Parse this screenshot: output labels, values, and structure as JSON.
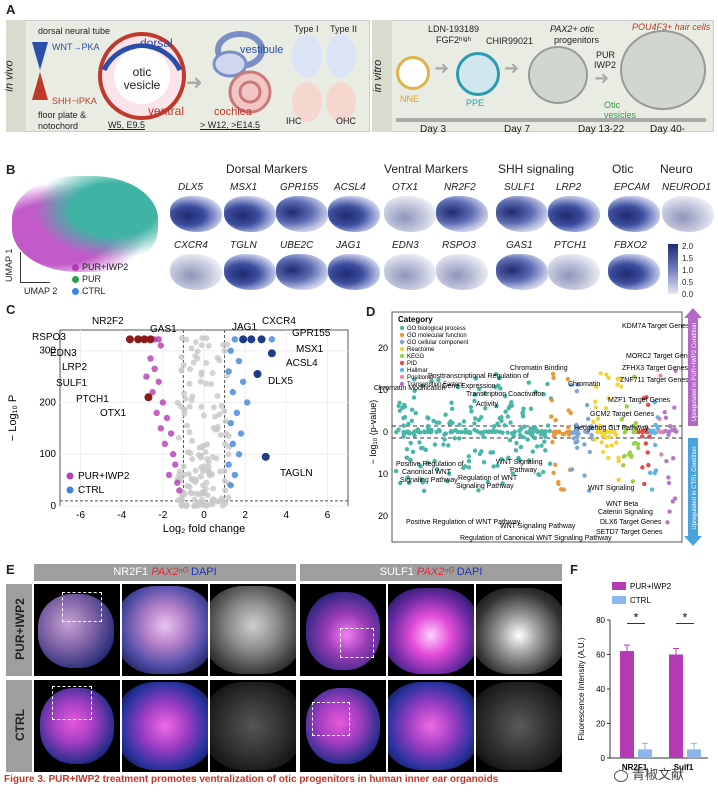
{
  "panel_letters": {
    "a": "A",
    "b": "B",
    "c": "C",
    "d": "D",
    "e": "E",
    "f": "F"
  },
  "panelA": {
    "in_vivo": "in vivo",
    "in_vitro": "in vitro",
    "dorsal_neural_tube": "dorsal neural tube",
    "wnt_pka": "WNT→PKA",
    "shh_pka": "SHH⊣PKA",
    "floor_plate": "floor plate &",
    "notochord": "notochord",
    "otic_vesicle": "otic vesicle",
    "dorsal": "dorsal",
    "ventral": "ventral",
    "w5": "W5, E9.5",
    "vestibule": "vestibule",
    "cochlea": "cochlea",
    "w12": "> W12, >E14.5",
    "type1": "Type I",
    "type2": "Type II",
    "ihc": "IHC",
    "ohc": "OHC",
    "ldn": "LDN-193189",
    "fgf2": "FGF2ʰⁱᵍʰ",
    "chir": "CHIR99021",
    "pax2_otic": "PAX2+ otic",
    "progenitors": "progenitors",
    "pur": "PUR",
    "iwp2": "IWP2",
    "pou4f3": "POU4F3+ hair cells",
    "nne": "NNE",
    "ppe": "PPE",
    "otic_vesicles": "Otic vesicles",
    "days": [
      "Day 3",
      "Day 7",
      "Day 13-22",
      "Day 40-"
    ]
  },
  "panelB": {
    "groups": [
      "Dorsal Markers",
      "Ventral Markers",
      "SHH signaling",
      "Otic",
      "Neuro"
    ],
    "row1": [
      "DLX5",
      "MSX1",
      "GPR155",
      "ACSL4",
      "OTX1",
      "NR2F2",
      "SULF1",
      "LRP2",
      "EPCAM",
      "NEUROD1"
    ],
    "row2": [
      "CXCR4",
      "TGLN",
      "UBE2C",
      "JAG1",
      "EDN3",
      "RSPO3",
      "GAS1",
      "PTCH1",
      "FBXO2"
    ],
    "umap1": "UMAP 1",
    "umap2": "UMAP 2",
    "legend": [
      "PUR+IWP2",
      "PUR",
      "CTRL"
    ],
    "colorbar": [
      "2.0",
      "1.5",
      "1.0",
      "0.5",
      "0.0"
    ]
  },
  "panelC": {
    "ylabel": "− Log₁₀ P",
    "xlabel": "Log₂ fold change",
    "xticks": [
      "-6",
      "-4",
      "-2",
      "0",
      "2",
      "4",
      "6"
    ],
    "yticks": [
      "0",
      "100",
      "200",
      "300"
    ],
    "legend": [
      "PUR+IWP2",
      "CTRL"
    ],
    "labels_left": [
      "NR2F2",
      "GAS1",
      "RSPO3",
      "EDN3",
      "LRP2",
      "SULF1",
      "PTCH1",
      "OTX1"
    ],
    "labels_right": [
      "JAG1",
      "CXCR4",
      "GPR155",
      "MSX1",
      "ACSL4",
      "DLX5",
      "TAGLN"
    ]
  },
  "panelD": {
    "ylabel": "− log₁₀ (p-value)",
    "yticks_top": [
      "20",
      "10",
      "0"
    ],
    "yticks_bottom": [
      "10",
      "20"
    ],
    "legend_title": "Category",
    "legend": [
      "GO biological process",
      "GO molecular function",
      "GO cellular component",
      "Reactome",
      "KEGG",
      "PID",
      "Hallmar",
      "Positional",
      "Transcription Factors"
    ],
    "up_label": "Upregulated in PUR+IWP2 Condition",
    "down_label": "Upregulated in CTRL Condition",
    "terms_up": [
      "KDM7A Target Genes",
      "MORC2 Target Genes",
      "ZFHX3 Target Genes",
      "ZNF711 Target Genes",
      "MZF1 Target Genes",
      "GCM2 Target Genes",
      "Hedgehog GLI Pathway",
      "Chromatin Binding",
      "Chromatin",
      "Chromatin Modification",
      "Posttranscriptional Regulation of",
      "Gene Expression",
      "Transcription Coactivator",
      "Activity"
    ],
    "terms_down": [
      "Positive Regulation of",
      "Canonical WNT",
      "Signaling Pathway",
      "WNT Signaling",
      "Pathway",
      "Regulation of WNT",
      "Signaling Pathway",
      "WNT Signaling",
      "WNT Beta",
      "Catenin Signaling",
      "DLX6 Target Genes",
      "SETD7 Target Genes",
      "Positive Regulation of WNT Pathway",
      "WNT Signaling Pathway",
      "Regulation of Canonical WNT Signaling Pathway"
    ]
  },
  "panelE": {
    "head1_a": "NR2F1 ",
    "head1_b": "PAX2ⁿᴳ",
    "head1_c": " DAPI",
    "head2_a": "SULF1 ",
    "head2_b": "PAX2ⁿᴳ",
    "head2_c": " DAPI",
    "row1": "PUR+IWP2",
    "row2": "CTRL"
  },
  "panelF": {
    "ylabel": "Fluorescence Intensity (A.U.)",
    "legend": [
      "PUR+IWP2",
      "CTRL"
    ],
    "yticks": [
      "0",
      "20",
      "40",
      "60",
      "80"
    ],
    "sig": "*"
  },
  "caption": "Figure 3.  PUR+IWP2 treatment promotes ventralization of otic progenitors in human inner ear organoids",
  "watermark": "青椒文献",
  "colors": {
    "pur_iwp2": "#b43bb3",
    "pur": "#2e9e44",
    "ctrl": "#3f86d8",
    "ctrl_bar": "#8db6ec",
    "caption": "#c0392b"
  },
  "chart_data": [
    {
      "type": "bar",
      "title": "",
      "ylabel": "Fluorescence Intensity (A.U.)",
      "categories": [
        "NR2F1",
        "Sulf1"
      ],
      "series": [
        {
          "name": "PUR+IWP2",
          "values": [
            62,
            60
          ]
        },
        {
          "name": "CTRL",
          "values": [
            5,
            5
          ]
        }
      ],
      "ylim": [
        0,
        80
      ]
    },
    {
      "type": "scatter",
      "title": "",
      "xlabel": "Log₂ fold change",
      "ylabel": "− Log₁₀ P",
      "xlim": [
        -7,
        7
      ],
      "ylim": [
        0,
        340
      ],
      "series": [
        {
          "name": "PUR+IWP2",
          "points": [
            [
              -3.6,
              322
            ],
            [
              -3.2,
              322
            ],
            [
              -2.9,
              322
            ],
            [
              -2.6,
              322
            ],
            [
              -2.4,
              322
            ],
            [
              -2.2,
              322
            ],
            [
              -2.1,
              310
            ],
            [
              -2.6,
              285
            ],
            [
              -2.4,
              265
            ],
            [
              -2.8,
              250
            ],
            [
              -2.2,
              240
            ],
            [
              -2.5,
              220
            ],
            [
              -2.0,
              200
            ],
            [
              -2.3,
              180
            ],
            [
              -1.8,
              170
            ],
            [
              -2.1,
              150
            ],
            [
              -1.6,
              140
            ],
            [
              -1.9,
              120
            ],
            [
              -1.5,
              100
            ],
            [
              -1.4,
              80
            ],
            [
              -1.7,
              60
            ],
            [
              -1.3,
              45
            ],
            [
              -1.2,
              30
            ],
            [
              -2.7,
              210
            ]
          ]
        },
        {
          "name": "CTRL",
          "points": [
            [
              1.5,
              322
            ],
            [
              1.9,
              322
            ],
            [
              2.3,
              322
            ],
            [
              2.8,
              322
            ],
            [
              3.3,
              322
            ],
            [
              1.3,
              300
            ],
            [
              1.7,
              280
            ],
            [
              1.2,
              260
            ],
            [
              1.9,
              240
            ],
            [
              1.4,
              220
            ],
            [
              2.1,
              200
            ],
            [
              1.6,
              180
            ],
            [
              1.3,
              160
            ],
            [
              1.8,
              140
            ],
            [
              1.4,
              120
            ],
            [
              1.7,
              100
            ],
            [
              1.2,
              80
            ],
            [
              1.5,
              60
            ],
            [
              1.3,
              40
            ],
            [
              2.6,
              255
            ],
            [
              3.3,
              295
            ]
          ]
        }
      ]
    }
  ]
}
